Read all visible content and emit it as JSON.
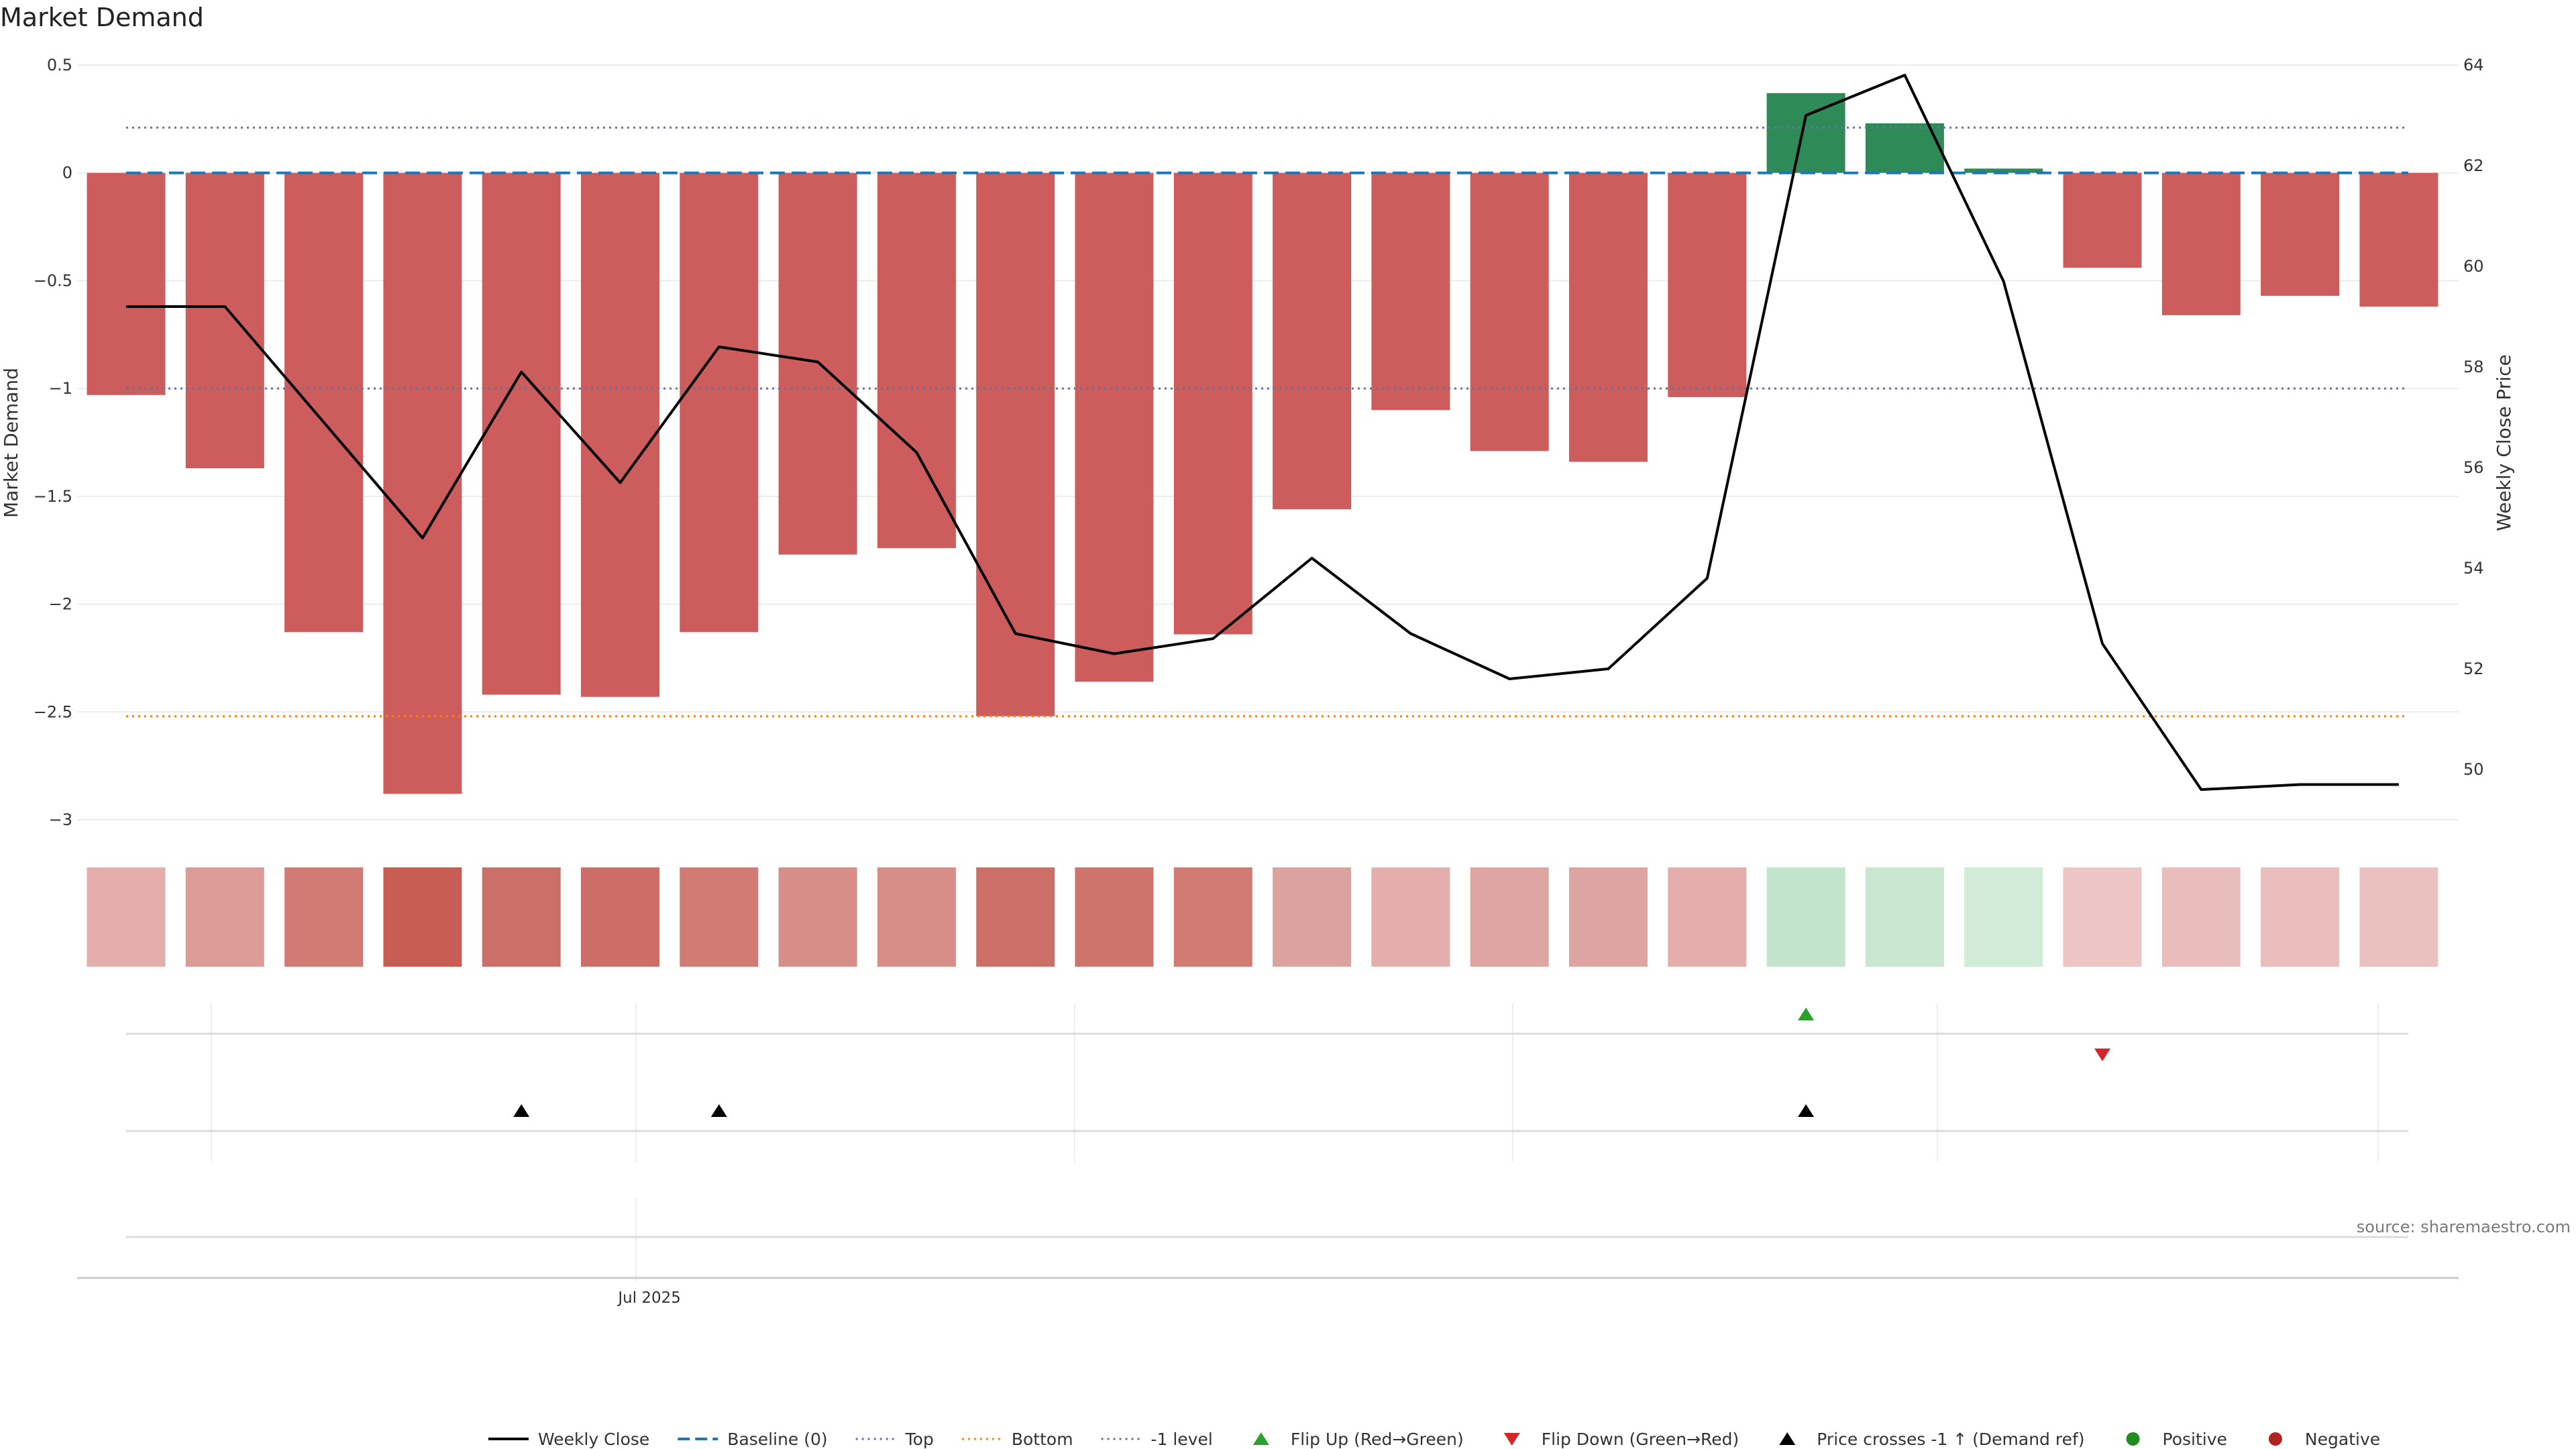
{
  "title": "Market Demand",
  "source": "source: sharemaestro.com",
  "colors": {
    "negative_bar": "#cd5c5c",
    "positive_bar": "#2e8b57",
    "baseline": "#1f77b4",
    "top": "#6a6fb0",
    "bottom": "#ff7f0e",
    "minus_one": "#6f6f8f",
    "price_line": "#000000",
    "flip_up": "#2ca02c",
    "flip_down": "#d62728",
    "cross_marker": "#000000",
    "positive_dot": "#228b22",
    "negative_dot": "#b22222"
  },
  "chart_data": {
    "type": "bar",
    "ylabel": "Market Demand",
    "y2label": "Weekly Close Price",
    "ylim": [
      -3,
      0.5
    ],
    "y_ticks": [
      0.5,
      0,
      -0.5,
      -1,
      -1.5,
      -2,
      -2.5,
      -3
    ],
    "y_tick_labels": [
      "0.5",
      "0",
      "−0.5",
      "−1",
      "−1.5",
      "−2",
      "−2.5",
      "−3"
    ],
    "y2lim": [
      49,
      64
    ],
    "y2_ticks": [
      50,
      52,
      54,
      56,
      58,
      60,
      62,
      64
    ],
    "y2_tick_labels": [
      "50",
      "52",
      "54",
      "56",
      "58",
      "60",
      "62",
      "64"
    ],
    "x_tick_label": "Jul 2025",
    "x_tick_index": 5.5,
    "reference_lines": {
      "baseline": 0,
      "top": 0.21,
      "bottom": -2.52,
      "minus_one": -1.0
    },
    "series": [
      {
        "name": "Market Demand",
        "values": [
          -1.03,
          -1.37,
          -2.13,
          -2.88,
          -2.42,
          -2.43,
          -2.13,
          -1.77,
          -1.74,
          -2.52,
          -2.36,
          -2.14,
          -1.56,
          -1.1,
          -1.29,
          -1.34,
          -1.04,
          0.37,
          0.23,
          0.02,
          -0.44,
          -0.66,
          -0.57,
          -0.62
        ]
      },
      {
        "name": "Weekly Close",
        "values": [
          59.2,
          59.2,
          56.9,
          54.6,
          57.9,
          55.7,
          58.4,
          58.1,
          56.3,
          52.7,
          52.3,
          52.6,
          54.2,
          52.7,
          51.8,
          52.0,
          53.8,
          63.0,
          63.8,
          59.7,
          52.5,
          49.6,
          49.7,
          49.7
        ]
      }
    ],
    "heat_strip": [
      "#e3aeab",
      "#dc9b97",
      "#d17b74",
      "#c75d55",
      "#cc6f68",
      "#cc6e67",
      "#d17b74",
      "#d78d88",
      "#d78d88",
      "#cc6f68",
      "#cf746d",
      "#d17b74",
      "#dca29e",
      "#e3aeab",
      "#dfa5a1",
      "#dea4a0",
      "#e3aeab",
      "#c3e4cc",
      "#c9e7d1",
      "#d1ebd9",
      "#ecc5c4",
      "#e9bdbc",
      "#e9bebd",
      "#eac1bf"
    ],
    "flip_up": [
      17
    ],
    "flip_down": [
      20
    ],
    "price_crosses": [
      4,
      6,
      17
    ]
  },
  "legend": [
    {
      "label": "Weekly Close",
      "kind": "line-solid"
    },
    {
      "label": "Baseline (0)",
      "kind": "line-dash-baseline"
    },
    {
      "label": "Top",
      "kind": "line-dot-top"
    },
    {
      "label": "Bottom",
      "kind": "line-dot-bottom"
    },
    {
      "label": "-1 level",
      "kind": "line-dot-minus"
    },
    {
      "label": "Flip Up (Red→Green)",
      "kind": "tri-up-green"
    },
    {
      "label": "Flip Down (Green→Red)",
      "kind": "tri-down-red"
    },
    {
      "label": "Price crosses -1 ↑ (Demand ref)",
      "kind": "tri-up-black"
    },
    {
      "label": "Positive",
      "kind": "dot-green"
    },
    {
      "label": "Negative",
      "kind": "dot-red"
    }
  ]
}
